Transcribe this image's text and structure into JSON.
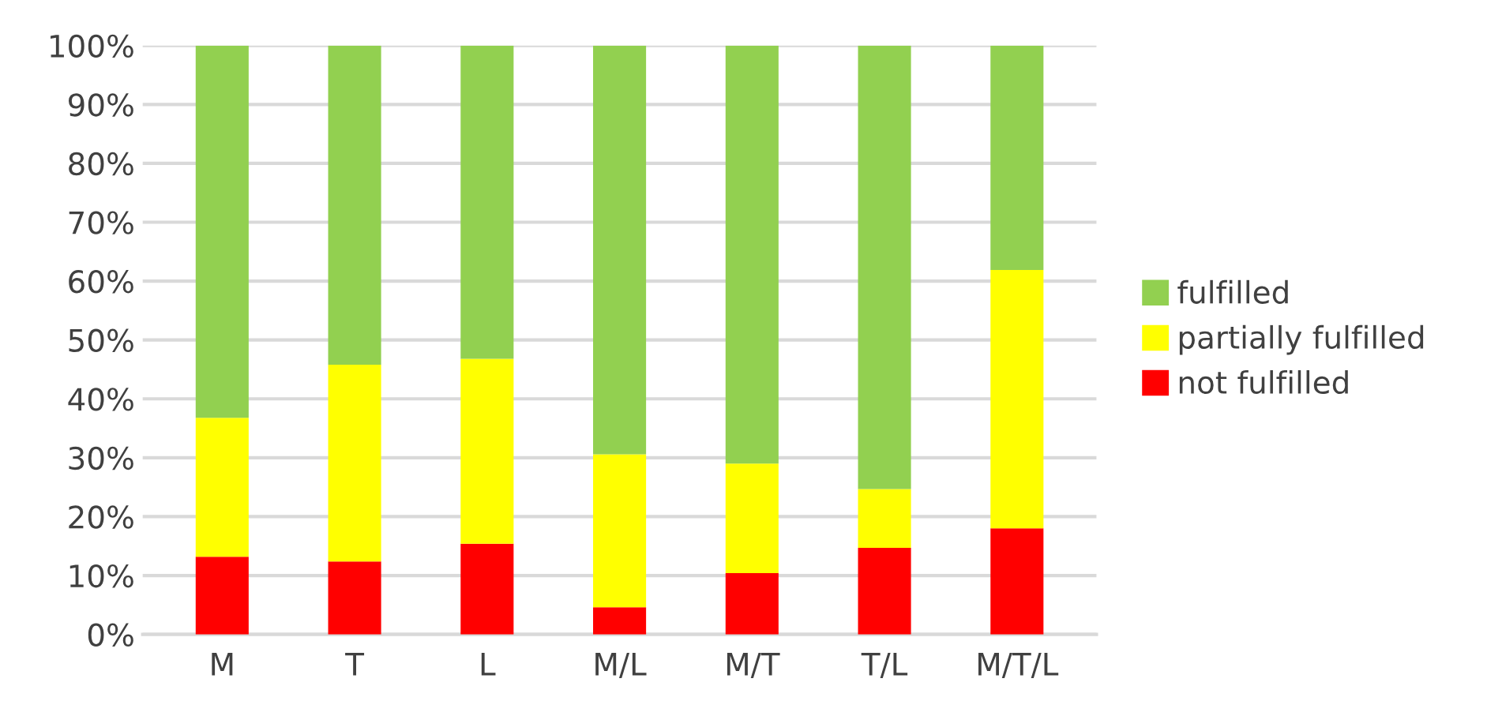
{
  "chart_data": {
    "type": "bar",
    "stacked": true,
    "categories": [
      "M",
      "T",
      "L",
      "M/L",
      "M/T",
      "T/L",
      "M/T/L"
    ],
    "series": [
      {
        "name": "not fulfilled",
        "color": "#ff0000",
        "values": [
          13.2,
          12.4,
          15.4,
          4.6,
          10.4,
          14.7,
          18.0
        ]
      },
      {
        "name": "partially fulfilled",
        "color": "#ffff00",
        "values": [
          23.6,
          33.4,
          31.4,
          26.0,
          18.6,
          10.0,
          43.9
        ]
      },
      {
        "name": "fulfilled",
        "color": "#92d050",
        "values": [
          63.2,
          54.2,
          53.2,
          69.4,
          71.0,
          75.3,
          38.1
        ]
      }
    ],
    "ylim": [
      0,
      100
    ],
    "yticks": [
      {
        "value": 0,
        "label": "0%"
      },
      {
        "value": 10,
        "label": "10%"
      },
      {
        "value": 20,
        "label": "20%"
      },
      {
        "value": 30,
        "label": "30%"
      },
      {
        "value": 40,
        "label": "40%"
      },
      {
        "value": 50,
        "label": "50%"
      },
      {
        "value": 60,
        "label": "60%"
      },
      {
        "value": 70,
        "label": "70%"
      },
      {
        "value": 80,
        "label": "80%"
      },
      {
        "value": 90,
        "label": "90%"
      },
      {
        "value": 100,
        "label": "100%"
      }
    ],
    "grid": "y",
    "legend": "right"
  }
}
